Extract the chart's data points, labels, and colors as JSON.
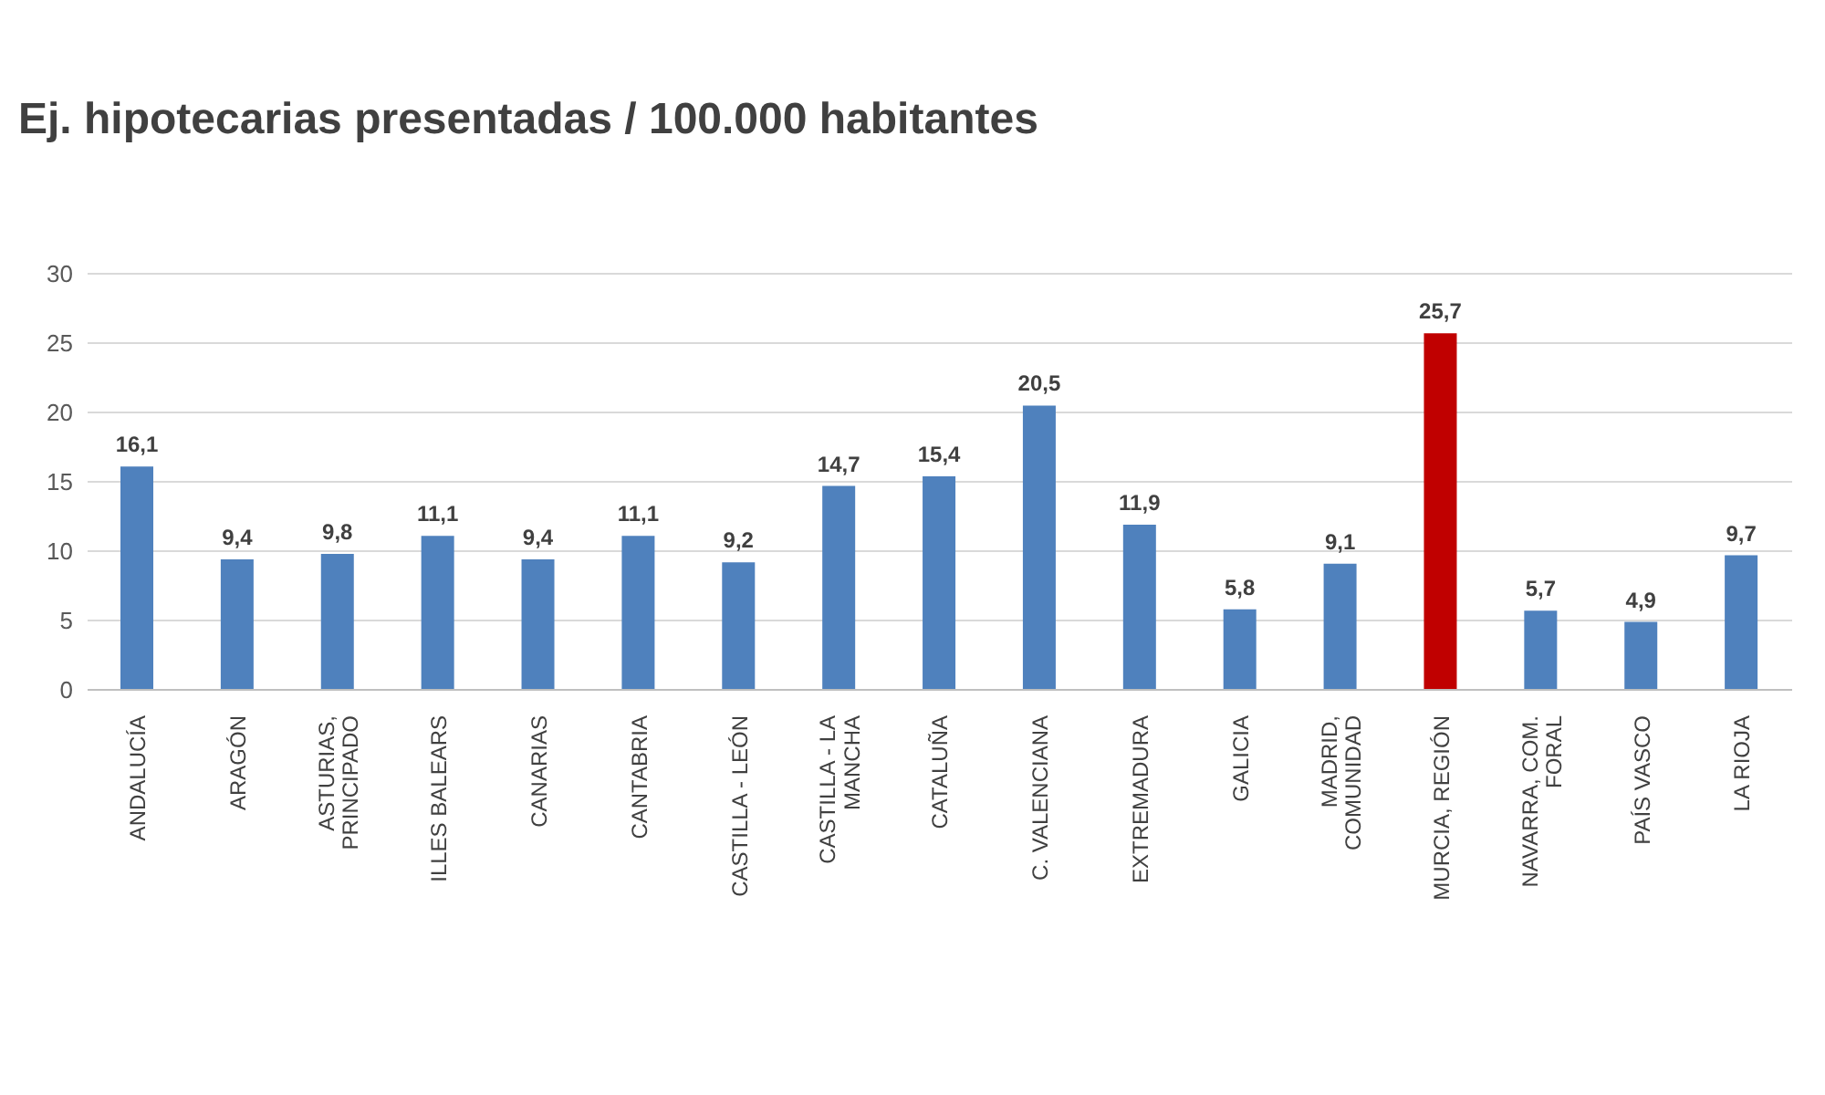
{
  "chart_data": {
    "type": "bar",
    "title": "Ej. hipotecarias presentadas / 100.000 habitantes",
    "categories": [
      "ANDALUCÍA",
      "ARAGÓN",
      "ASTURIAS, PRINCIPADO",
      "ILLES BALEARS",
      "CANARIAS",
      "CANTABRIA",
      "CASTILLA - LEÓN",
      "CASTILLA - LA MANCHA",
      "CATALUÑA",
      "C. VALENCIANA",
      "EXTREMADURA",
      "GALICIA",
      "MADRID, COMUNIDAD",
      "MURCIA, REGIÓN",
      "NAVARRA, COM. FORAL",
      "PAÍS VASCO",
      "LA RIOJA"
    ],
    "values": [
      16.1,
      9.4,
      9.8,
      11.1,
      9.4,
      11.1,
      9.2,
      14.7,
      15.4,
      20.5,
      11.9,
      5.8,
      9.1,
      25.7,
      5.7,
      4.9,
      9.7
    ],
    "colors": [
      "#4f81bd",
      "#4f81bd",
      "#4f81bd",
      "#4f81bd",
      "#4f81bd",
      "#4f81bd",
      "#4f81bd",
      "#4f81bd",
      "#4f81bd",
      "#4f81bd",
      "#4f81bd",
      "#4f81bd",
      "#4f81bd",
      "#c00000",
      "#4f81bd",
      "#4f81bd",
      "#4f81bd"
    ],
    "value_labels": [
      "16,1",
      "9,4",
      "9,8",
      "11,1",
      "9,4",
      "11,1",
      "9,2",
      "14,7",
      "15,4",
      "20,5",
      "11,9",
      "5,8",
      "9,1",
      "25,7",
      "5,7",
      "4,9",
      "9,7"
    ],
    "ylim": [
      0,
      30
    ],
    "yticks": [
      0,
      5,
      10,
      15,
      20,
      25,
      30
    ],
    "grid": "y"
  }
}
